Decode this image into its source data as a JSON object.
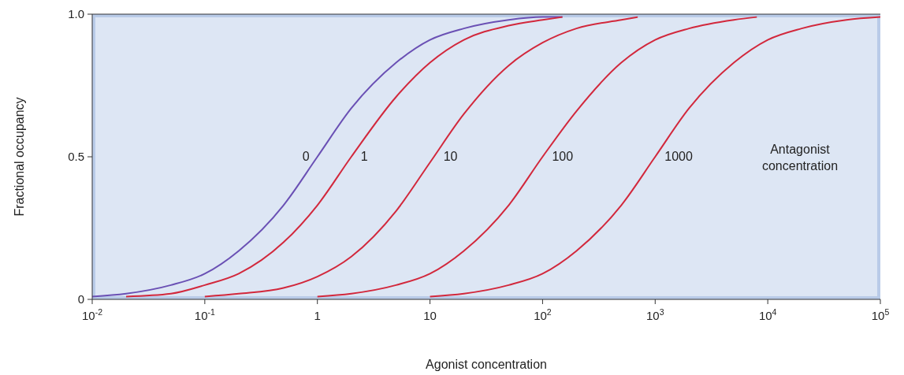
{
  "chart_data": {
    "type": "line",
    "xlabel": "Agonist concentration",
    "ylabel": "Fractional occupancy",
    "log": "x",
    "xlim": [
      0.01,
      100000
    ],
    "ylim": [
      0,
      1
    ],
    "xticks": [
      {
        "value": 0.01,
        "label": "10$^{-2}$"
      },
      {
        "value": 0.1,
        "label": "10$^{-1}$"
      },
      1,
      10,
      {
        "value": 100,
        "label": "10$^{2}$"
      },
      {
        "value": 1000,
        "label": "10$^{3}$"
      },
      {
        "value": 10000,
        "label": "10$^{4}$"
      },
      {
        "value": 100000,
        "label": "10$^{5}$"
      }
    ],
    "yticks": [
      0,
      0.5,
      {
        "value": 1,
        "label": "1.0"
      }
    ],
    "grid": false,
    "marker": "none",
    "line_style": "solid",
    "series": [
      {
        "name": "0",
        "color": "#6a50b4",
        "x": [
          0.01,
          0.02,
          0.05,
          0.1,
          0.2,
          0.5,
          1,
          2,
          5,
          10,
          20,
          50,
          100,
          150
        ],
        "values": [
          0.01,
          0.02,
          0.05,
          0.09,
          0.17,
          0.33,
          0.5,
          0.67,
          0.83,
          0.91,
          0.95,
          0.98,
          0.99,
          0.99
        ]
      },
      {
        "name": "1",
        "color": "#d2283c",
        "x": [
          0.02,
          0.05,
          0.1,
          0.2,
          0.5,
          1,
          2,
          5,
          10,
          20,
          50,
          100,
          150
        ],
        "values": [
          0.01,
          0.02,
          0.05,
          0.09,
          0.2,
          0.33,
          0.5,
          0.71,
          0.83,
          0.91,
          0.96,
          0.98,
          0.99
        ]
      },
      {
        "name": "10",
        "color": "#d2283c",
        "x": [
          0.1,
          0.2,
          0.5,
          1,
          2,
          5,
          10,
          20,
          50,
          100,
          200,
          500,
          700
        ],
        "values": [
          0.01,
          0.02,
          0.04,
          0.08,
          0.15,
          0.31,
          0.48,
          0.65,
          0.82,
          0.9,
          0.95,
          0.98,
          0.99
        ]
      },
      {
        "name": "100",
        "color": "#d2283c",
        "x": [
          1,
          2,
          5,
          10,
          20,
          50,
          100,
          200,
          500,
          1000,
          2000,
          5000,
          8000
        ],
        "values": [
          0.01,
          0.02,
          0.05,
          0.09,
          0.17,
          0.33,
          0.5,
          0.66,
          0.83,
          0.91,
          0.95,
          0.98,
          0.99
        ]
      },
      {
        "name": "1000",
        "color": "#d2283c",
        "x": [
          10,
          20,
          50,
          100,
          200,
          500,
          1000,
          2000,
          5000,
          10000,
          20000,
          50000,
          100000
        ],
        "values": [
          0.01,
          0.02,
          0.05,
          0.09,
          0.17,
          0.33,
          0.5,
          0.67,
          0.83,
          0.91,
          0.95,
          0.98,
          0.99
        ]
      }
    ],
    "annotations": [
      "Antagonist\nconcentration"
    ]
  }
}
